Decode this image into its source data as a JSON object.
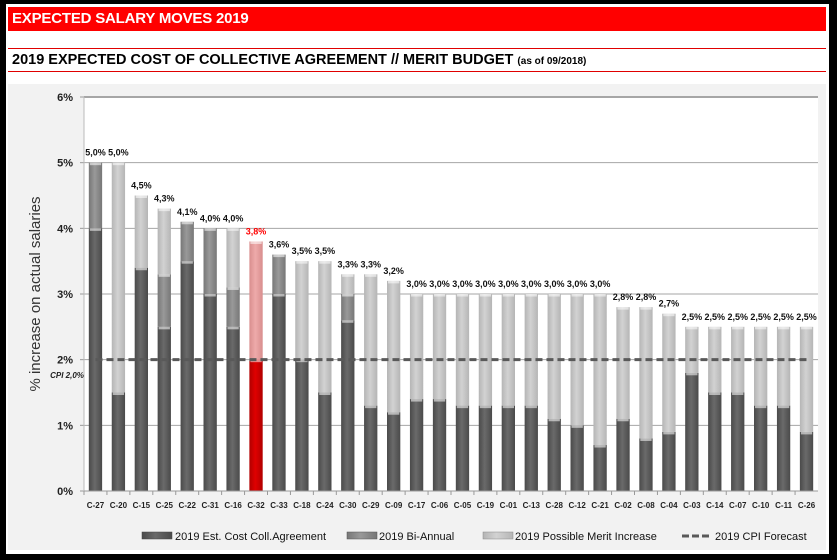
{
  "page": {
    "title": "EXPECTED SALARY MOVES 2019",
    "subtitle": "2019 EXPECTED COST OF COLLECTIVE AGREEMENT // MERIT BUDGET",
    "subtitle_note": "(as of 09/2018)"
  },
  "colors": {
    "banner": "#ff0000",
    "coll_agreement": "#5f5f5f",
    "bi_annual": "#8c8c8c",
    "merit": "#c8c8c8",
    "highlight_base": "#cc0000",
    "highlight_top": "#e8a0a0",
    "highlight_label": "#ff0000",
    "cpi_line": "#595959"
  },
  "chart_data": {
    "type": "bar",
    "stacked": true,
    "title": "2019 EXPECTED COST OF COLLECTIVE AGREEMENT // MERIT BUDGET (as of 09/2018)",
    "xlabel": "",
    "ylabel": "% increase on actual salaries",
    "ylim": [
      0,
      6
    ],
    "yticks": [
      "0%",
      "1%",
      "2%",
      "3%",
      "4%",
      "5%",
      "6%"
    ],
    "grid": true,
    "legend_position": "bottom",
    "categories": [
      "C-27",
      "C-20",
      "C-15",
      "C-25",
      "C-22",
      "C-31",
      "C-16",
      "C-32",
      "C-33",
      "C-18",
      "C-24",
      "C-30",
      "C-29",
      "C-09",
      "C-17",
      "C-06",
      "C-05",
      "C-19",
      "C-01",
      "C-13",
      "C-28",
      "C-12",
      "C-21",
      "C-02",
      "C-08",
      "C-04",
      "C-03",
      "C-14",
      "C-07",
      "C-10",
      "C-11",
      "C-26"
    ],
    "series": [
      {
        "name": "2019 Est. Cost Coll.Agreement",
        "values": [
          4.0,
          1.5,
          3.4,
          2.5,
          3.5,
          3.0,
          2.5,
          2.0,
          3.0,
          2.0,
          1.5,
          2.6,
          1.3,
          1.2,
          1.4,
          1.4,
          1.3,
          1.3,
          1.3,
          1.3,
          1.1,
          1.0,
          0.7,
          1.1,
          0.8,
          0.9,
          1.8,
          1.5,
          1.5,
          1.3,
          1.3,
          0.9
        ]
      },
      {
        "name": "2019 Bi-Annual",
        "values": [
          1.0,
          0,
          0,
          0.8,
          0.6,
          1.0,
          0.6,
          0,
          0.6,
          0,
          0,
          0.4,
          0,
          0,
          0,
          0,
          0,
          0,
          0,
          0,
          0,
          0,
          0,
          0,
          0,
          0,
          0,
          0,
          0,
          0,
          0,
          0
        ]
      },
      {
        "name": "2019 Possible Merit Increase",
        "values": [
          0,
          3.5,
          1.1,
          1.0,
          0,
          0,
          0.9,
          1.8,
          0,
          1.5,
          2.0,
          0.3,
          2.0,
          2.0,
          1.6,
          1.6,
          1.7,
          1.7,
          1.7,
          1.7,
          1.9,
          2.0,
          2.3,
          1.7,
          2.0,
          1.8,
          0.7,
          1.0,
          1.0,
          1.2,
          1.2,
          1.6
        ]
      }
    ],
    "totals_labels": [
      "5,0%",
      "5,0%",
      "4,5%",
      "4,3%",
      "4,1%",
      "4,0%",
      "4,0%",
      "3,8%",
      "3,6%",
      "3,5%",
      "3,5%",
      "3,3%",
      "3,3%",
      "3,2%",
      "3,0%",
      "3,0%",
      "3,0%",
      "3,0%",
      "3,0%",
      "3,0%",
      "3,0%",
      "3,0%",
      "3,0%",
      "2,8%",
      "2,8%",
      "2,7%",
      "2,5%",
      "2,5%",
      "2,5%",
      "2,5%",
      "2,5%",
      "2,5%"
    ],
    "highlight_category": "C-32",
    "cpi_line": {
      "name": "2019 CPI Forecast",
      "value": 2.0,
      "label": "CPI 2,0%"
    },
    "legend": [
      "2019 Est. Cost Coll.Agreement",
      "2019 Bi-Annual",
      "2019 Possible Merit Increase",
      "2019 CPI Forecast"
    ]
  }
}
